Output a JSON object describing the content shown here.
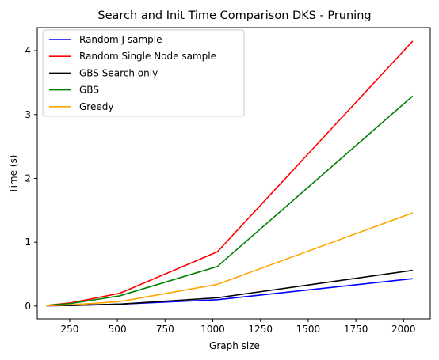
{
  "chart_data": {
    "type": "line",
    "title": "Search and Init Time Comparison DKS - Pruning",
    "xlabel": "Graph size",
    "ylabel": "Time (s)",
    "xlim": [
      80,
      2140
    ],
    "ylim": [
      -0.2,
      4.36
    ],
    "xticks": [
      250,
      500,
      750,
      1000,
      1250,
      1500,
      1750,
      2000
    ],
    "yticks": [
      0,
      1,
      2,
      3,
      4
    ],
    "grid": false,
    "legend_position": "top-left",
    "x": [
      128,
      256,
      512,
      1024,
      2048
    ],
    "series": [
      {
        "name": "Random J sample",
        "color": "#0000ff",
        "values": [
          0.005,
          0.01,
          0.03,
          0.1,
          0.43
        ]
      },
      {
        "name": "Random Single Node sample",
        "color": "#ff0000",
        "values": [
          0.01,
          0.05,
          0.2,
          0.85,
          4.15
        ]
      },
      {
        "name": "GBS Search only",
        "color": "#000000",
        "values": [
          0.005,
          0.01,
          0.03,
          0.13,
          0.56
        ]
      },
      {
        "name": "GBS",
        "color": "#008000",
        "values": [
          0.01,
          0.04,
          0.16,
          0.62,
          3.29
        ]
      },
      {
        "name": "Greedy",
        "color": "#ffa500",
        "values": [
          0.005,
          0.02,
          0.07,
          0.34,
          1.46
        ]
      }
    ]
  }
}
